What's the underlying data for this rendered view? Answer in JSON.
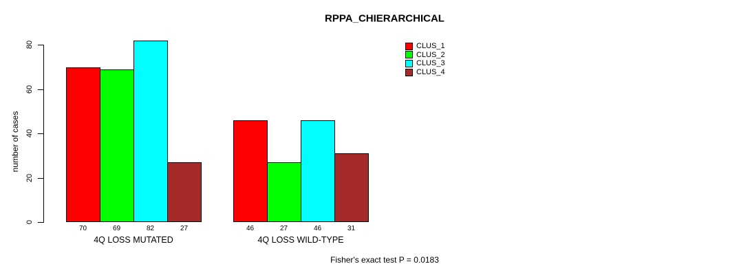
{
  "title": "RPPA_CHIERARCHICAL",
  "footnote": "Fisher's exact test P = 0.0183",
  "colors": {
    "axis": "#000000",
    "background": "#ffffff",
    "clus_1": "#FF0000",
    "clus_2": "#00FF00",
    "clus_3": "#00FFFF",
    "clus_4": "#A52A2A"
  },
  "legend": {
    "items": [
      {
        "label": "CLUS_1",
        "color": "#FF0000"
      },
      {
        "label": "CLUS_2",
        "color": "#00FF00"
      },
      {
        "label": "CLUS_3",
        "color": "#00FFFF"
      },
      {
        "label": "CLUS_4",
        "color": "#A52A2A"
      }
    ]
  },
  "chart_data": {
    "type": "bar",
    "title": "RPPA_CHIERARCHICAL",
    "xlabel": "",
    "ylabel": "number of cases",
    "ylim": [
      0,
      82
    ],
    "yticks": [
      0,
      20,
      40,
      60,
      80
    ],
    "grid": false,
    "legend_position": "top-right",
    "categories": [
      "4Q LOSS MUTATED",
      "4Q LOSS WILD-TYPE"
    ],
    "series": [
      {
        "name": "CLUS_1",
        "color": "#FF0000",
        "values": [
          70,
          46
        ]
      },
      {
        "name": "CLUS_2",
        "color": "#00FF00",
        "values": [
          69,
          27
        ]
      },
      {
        "name": "CLUS_3",
        "color": "#00FFFF",
        "values": [
          82,
          46
        ]
      },
      {
        "name": "CLUS_4",
        "color": "#A52A2A",
        "values": [
          27,
          31
        ]
      }
    ],
    "bar_value_labels": [
      [
        70,
        69,
        82,
        27
      ],
      [
        46,
        27,
        46,
        31
      ]
    ],
    "annotation": "Fisher's exact test P = 0.0183"
  }
}
